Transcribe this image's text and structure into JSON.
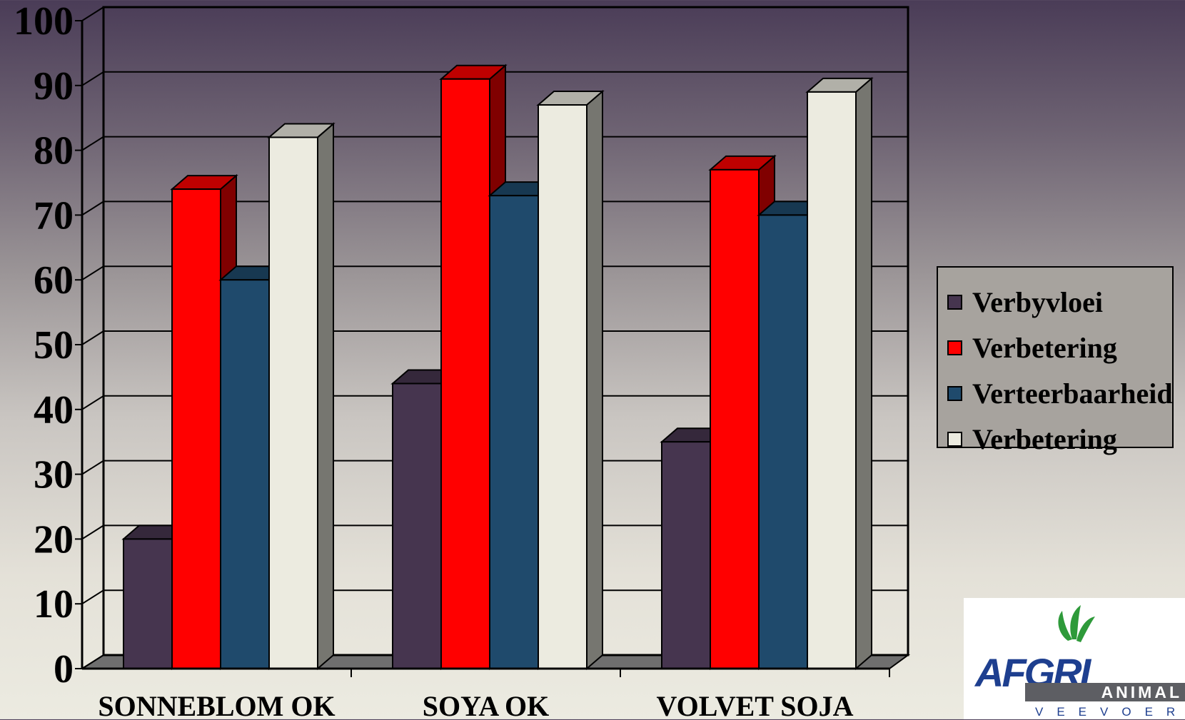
{
  "chart_data": {
    "type": "bar",
    "title": "",
    "xlabel": "",
    "ylabel": "",
    "ylim": [
      0,
      100
    ],
    "yticks": [
      0,
      10,
      20,
      30,
      40,
      50,
      60,
      70,
      80,
      90,
      100
    ],
    "grid": true,
    "legend_position": "right",
    "categories": [
      "SONNEBLOM OK",
      "SOYA OK",
      "VOLVET SOJA"
    ],
    "series": [
      {
        "name": "Verbyvloei",
        "values": [
          20,
          44,
          35
        ],
        "color": "#46354f"
      },
      {
        "name": "Verbetering",
        "values": [
          74,
          91,
          77
        ],
        "color": "#ff0000"
      },
      {
        "name": "Verteerbaarheid",
        "values": [
          60,
          73,
          70
        ],
        "color": "#1f4a6c"
      },
      {
        "name": "Verbetering",
        "values": [
          82,
          87,
          89
        ],
        "color": "#ecebe0"
      }
    ]
  },
  "logo": {
    "word": "AFGRI",
    "bar": "ANIMAL FEEDS",
    "sub": "VEEVOERE",
    "color": "#1e3f8f"
  }
}
